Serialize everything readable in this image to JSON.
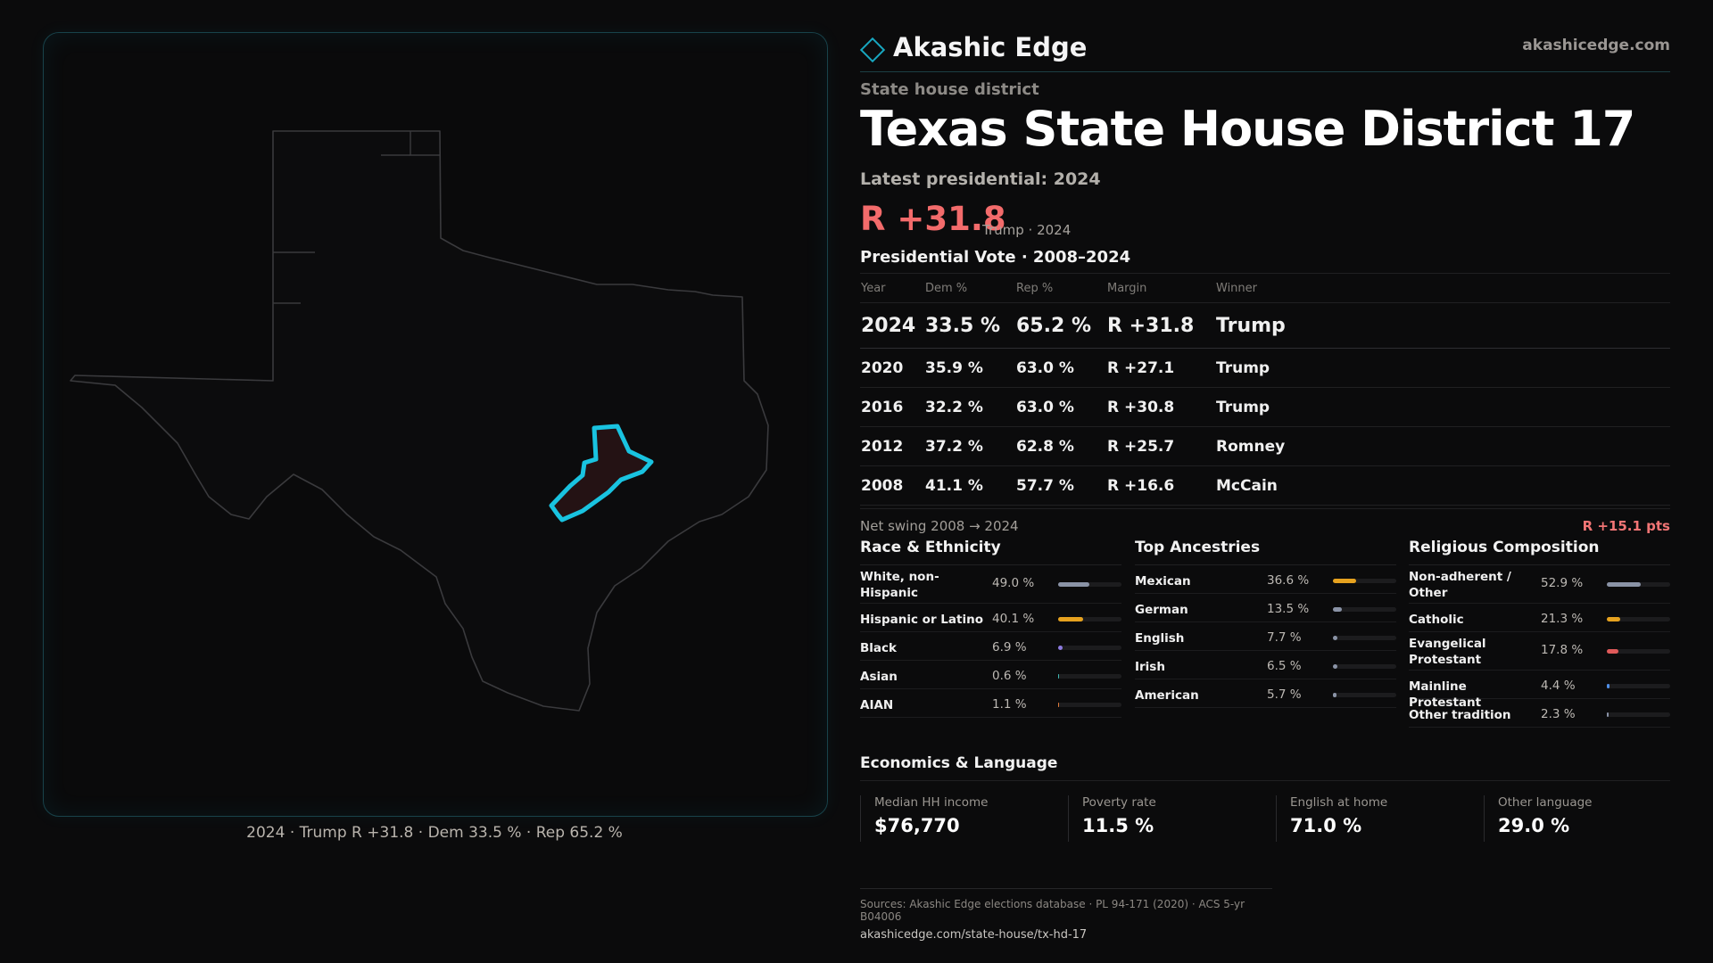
{
  "brand": {
    "name": "Akashic Edge",
    "url": "akashicedge.com"
  },
  "header": {
    "kicker": "State house district",
    "title": "Texas  State House District 17",
    "latest": "Latest presidential: 2024",
    "margin": "R +31.8",
    "margin_sub": "Trump · 2024"
  },
  "map": {
    "caption": "2024 · Trump R +31.8 · Dem 33.5 % · Rep 65.2 %",
    "highlight_color": "#19c3e0"
  },
  "votes": {
    "title": "Presidential Vote · 2008–2024",
    "columns": [
      "Year",
      "Dem %",
      "Rep %",
      "Margin",
      "Winner"
    ],
    "rows": [
      {
        "year": "2024",
        "dem": "33.5 %",
        "rep": "65.2 %",
        "margin": "R +31.8",
        "winner": "Trump"
      },
      {
        "year": "2020",
        "dem": "35.9 %",
        "rep": "63.0 %",
        "margin": "R +27.1",
        "winner": "Trump"
      },
      {
        "year": "2016",
        "dem": "32.2 %",
        "rep": "63.0 %",
        "margin": "R +30.8",
        "winner": "Trump"
      },
      {
        "year": "2012",
        "dem": "37.2 %",
        "rep": "62.8 %",
        "margin": "R +25.7",
        "winner": "Romney"
      },
      {
        "year": "2008",
        "dem": "41.1 %",
        "rep": "57.7 %",
        "margin": "R +16.6",
        "winner": "McCain"
      }
    ]
  },
  "swing": {
    "label": "Net swing 2008 → 2024",
    "value": "R +15.1 pts"
  },
  "race": {
    "title": "Race & Ethnicity",
    "items": [
      {
        "label": "White, non-Hispanic",
        "pct": "49.0 %",
        "value": 49.0,
        "color": "#8a93a6"
      },
      {
        "label": "Hispanic or Latino",
        "pct": "40.1 %",
        "value": 40.1,
        "color": "#e6a21f"
      },
      {
        "label": "Black",
        "pct": "6.9 %",
        "value": 6.9,
        "color": "#8d7be0"
      },
      {
        "label": "Asian",
        "pct": "0.6 %",
        "value": 0.6,
        "color": "#3fb6b0"
      },
      {
        "label": "AIAN",
        "pct": "1.1 %",
        "value": 1.1,
        "color": "#e07a3a"
      }
    ]
  },
  "ancestry": {
    "title": "Top Ancestries",
    "items": [
      {
        "label": "Mexican",
        "pct": "36.6 %",
        "value": 36.6,
        "color": "#e6a21f"
      },
      {
        "label": "German",
        "pct": "13.5 %",
        "value": 13.5,
        "color": "#8a93a6"
      },
      {
        "label": "English",
        "pct": "7.7 %",
        "value": 7.7,
        "color": "#8a93a6"
      },
      {
        "label": "Irish",
        "pct": "6.5 %",
        "value": 6.5,
        "color": "#8a93a6"
      },
      {
        "label": "American",
        "pct": "5.7 %",
        "value": 5.7,
        "color": "#8a93a6"
      }
    ]
  },
  "religion": {
    "title": "Religious Composition",
    "items": [
      {
        "label": "Non-adherent / Other",
        "pct": "52.9 %",
        "value": 52.9,
        "color": "#8a93a6"
      },
      {
        "label": "Catholic",
        "pct": "21.3 %",
        "value": 21.3,
        "color": "#e6a21f"
      },
      {
        "label": "Evangelical Protestant",
        "pct": "17.8 %",
        "value": 17.8,
        "color": "#e05a5a"
      },
      {
        "label": "Mainline Protestant",
        "pct": "4.4 %",
        "value": 4.4,
        "color": "#4f8fe8"
      },
      {
        "label": "Other tradition",
        "pct": "2.3 %",
        "value": 2.3,
        "color": "#8a93a6"
      }
    ]
  },
  "economics": {
    "title": "Economics & Language",
    "items": [
      {
        "label": "Median HH income",
        "value": "$76,770"
      },
      {
        "label": "Poverty rate",
        "value": "11.5 %"
      },
      {
        "label": "English at home",
        "value": "71.0 %"
      },
      {
        "label": "Other language",
        "value": "29.0 %"
      }
    ]
  },
  "footer": {
    "sources": "Sources: Akashic Edge elections database · PL 94-171 (2020) · ACS 5-yr B04006",
    "url": "akashicedge.com/state-house/tx-hd-17"
  }
}
